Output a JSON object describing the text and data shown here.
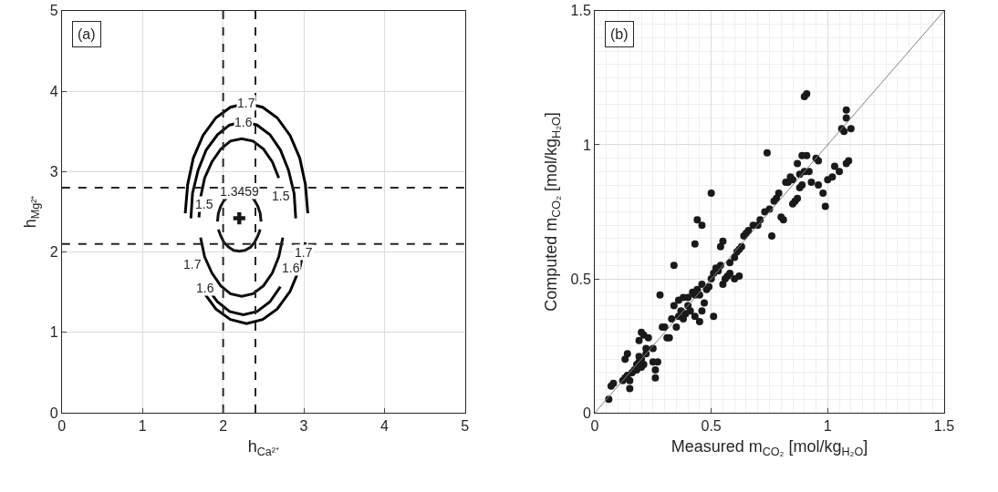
{
  "chart_data": [
    {
      "type": "line",
      "title": "(a)",
      "xlabel": "h$_{Ca²⁺}$",
      "ylabel": "h$_{Mg²⁺}$",
      "xlim": [
        0,
        5
      ],
      "ylim": [
        0,
        5
      ],
      "xticks": [
        0,
        1,
        2,
        3,
        4,
        5
      ],
      "yticks": [
        0,
        1,
        2,
        3,
        4,
        5
      ],
      "grid": true,
      "line_style": "solid",
      "series": [
        {
          "color": "#000000",
          "x": [
            1.53,
            1.56,
            1.63,
            1.75,
            1.91,
            2.09,
            2.29,
            2.49,
            2.67,
            2.83,
            2.95,
            3.02,
            3.05
          ],
          "values": [
            2.48,
            2.84,
            3.17,
            3.45,
            3.67,
            3.8,
            3.85,
            3.8,
            3.67,
            3.45,
            3.17,
            2.84,
            2.48
          ]
        },
        {
          "color": "#030303",
          "x": [
            1.75,
            1.91,
            2.09,
            2.29,
            2.49,
            2.67,
            2.83,
            2.95,
            3.02
          ],
          "values": [
            1.51,
            1.29,
            1.16,
            1.11,
            1.16,
            1.29,
            1.51,
            1.8,
            2.12
          ]
        },
        {
          "color": "#060606",
          "x": [
            1.6,
            1.62,
            1.69,
            1.79,
            1.93,
            2.08,
            2.25,
            2.42,
            2.58,
            2.71,
            2.81,
            2.88,
            2.9
          ],
          "values": [
            2.42,
            2.73,
            3.02,
            3.27,
            3.46,
            3.58,
            3.62,
            3.58,
            3.46,
            3.27,
            3.02,
            2.73,
            2.42
          ]
        },
        {
          "color": "#090909",
          "x": [
            1.79,
            1.93,
            2.08,
            2.25,
            2.42,
            2.58,
            2.71
          ],
          "values": [
            1.57,
            1.38,
            1.26,
            1.22,
            1.26,
            1.38,
            1.57
          ]
        },
        {
          "color": "#0c0c0c",
          "x": [
            1.7,
            1.72,
            1.77,
            1.86,
            1.97,
            2.09,
            2.23,
            2.37,
            2.5,
            2.61,
            2.69
          ],
          "values": [
            2.43,
            2.68,
            2.92,
            3.12,
            3.28,
            3.38,
            3.41,
            3.38,
            3.28,
            3.12,
            2.92
          ]
        },
        {
          "color": "#0f0f0f",
          "x": [
            1.72,
            1.77,
            1.86,
            1.97,
            2.09,
            2.23,
            2.37,
            2.5,
            2.61,
            2.69,
            2.74
          ],
          "values": [
            2.18,
            1.94,
            1.74,
            1.58,
            1.48,
            1.45,
            1.48,
            1.58,
            1.74,
            1.94,
            2.18
          ]
        },
        {
          "color": "#121212",
          "x": [
            1.93,
            1.94,
            1.97,
            2.01,
            2.07,
            2.13,
            2.2,
            2.27,
            2.34,
            2.39,
            2.43,
            2.46,
            2.47
          ],
          "values": [
            2.38,
            2.48,
            2.57,
            2.64,
            2.7,
            2.74,
            2.75,
            2.74,
            2.7,
            2.64,
            2.57,
            2.48,
            2.38
          ]
        },
        {
          "color": "#151515",
          "x": [
            1.94,
            1.97,
            2.01,
            2.07,
            2.13,
            2.2,
            2.27,
            2.34,
            2.39,
            2.43,
            2.46
          ],
          "values": [
            2.28,
            2.2,
            2.12,
            2.06,
            2.02,
            2.01,
            2.02,
            2.06,
            2.12,
            2.2,
            2.28
          ]
        },
        {
          "type": "scatter",
          "marker": "cross",
          "color": "#181818",
          "x": [
            2.2
          ],
          "values": [
            2.42
          ]
        }
      ],
      "ref_lines": [
        {
          "axis": "x",
          "value": 2,
          "color": "#262626",
          "line_style": "dashed"
        },
        {
          "axis": "x",
          "value": 2.4,
          "color": "#262626",
          "line_style": "dashed"
        },
        {
          "axis": "y",
          "value": 2.1,
          "color": "#262626",
          "line_style": "dashed"
        },
        {
          "axis": "y",
          "value": 2.8,
          "color": "#262626",
          "line_style": "dashed"
        }
      ],
      "annotations": [
        {
          "text": "1.7",
          "x": 2.29,
          "y": 3.85
        },
        {
          "text": "1.6",
          "x": 2.25,
          "y": 3.62
        },
        {
          "text": "1.5",
          "x": 1.77,
          "y": 2.6
        },
        {
          "text": "1.5",
          "x": 2.72,
          "y": 2.7
        },
        {
          "text": "1.3459",
          "x": 2.2,
          "y": 2.75
        },
        {
          "text": "1.7",
          "x": 1.62,
          "y": 1.85
        },
        {
          "text": "1.6",
          "x": 1.78,
          "y": 1.55
        },
        {
          "text": "1.6",
          "x": 2.84,
          "y": 1.8
        },
        {
          "text": "1.7",
          "x": 3.0,
          "y": 2.0
        }
      ]
    },
    {
      "type": "scatter",
      "title": "(b)",
      "xlabel": "Measured m$_{CO₂}$ [mol/kg$_{H₂O}$]",
      "ylabel": "Computed m$_{CO₂}$ [mol/kg$_{H₂O}$]",
      "xlim": [
        0,
        1.5
      ],
      "ylim": [
        0,
        1.5
      ],
      "grid": true,
      "xticks": [
        0,
        {
          "value": 0.05,
          "label": null
        },
        {
          "value": 0.1,
          "label": null
        },
        {
          "value": 0.15,
          "label": null
        },
        {
          "value": 0.2,
          "label": null
        },
        {
          "value": 0.25,
          "label": null
        },
        {
          "value": 0.3,
          "label": null
        },
        {
          "value": 0.35,
          "label": null
        },
        {
          "value": 0.4,
          "label": null
        },
        {
          "value": 0.45,
          "label": null
        },
        0.5,
        {
          "value": 0.55,
          "label": null
        },
        {
          "value": 0.6,
          "label": null
        },
        {
          "value": 0.65,
          "label": null
        },
        {
          "value": 0.7,
          "label": null
        },
        {
          "value": 0.75,
          "label": null
        },
        {
          "value": 0.8,
          "label": null
        },
        {
          "value": 0.85,
          "label": null
        },
        {
          "value": 0.9,
          "label": null
        },
        {
          "value": 0.95,
          "label": null
        },
        1,
        {
          "value": 1.05,
          "label": null
        },
        {
          "value": 1.1,
          "label": null
        },
        {
          "value": 1.15,
          "label": null
        },
        {
          "value": 1.2,
          "label": null
        },
        {
          "value": 1.25,
          "label": null
        },
        {
          "value": 1.3,
          "label": null
        },
        {
          "value": 1.35,
          "label": null
        },
        {
          "value": 1.4,
          "label": null
        },
        {
          "value": 1.45,
          "label": null
        },
        1.5
      ],
      "yticks": [
        0,
        {
          "value": 0.05,
          "label": null
        },
        {
          "value": 0.1,
          "label": null
        },
        {
          "value": 0.15,
          "label": null
        },
        {
          "value": 0.2,
          "label": null
        },
        {
          "value": 0.25,
          "label": null
        },
        {
          "value": 0.3,
          "label": null
        },
        {
          "value": 0.35,
          "label": null
        },
        {
          "value": 0.4,
          "label": null
        },
        {
          "value": 0.45,
          "label": null
        },
        0.5,
        {
          "value": 0.55,
          "label": null
        },
        {
          "value": 0.6,
          "label": null
        },
        {
          "value": 0.65,
          "label": null
        },
        {
          "value": 0.7,
          "label": null
        },
        {
          "value": 0.75,
          "label": null
        },
        {
          "value": 0.8,
          "label": null
        },
        {
          "value": 0.85,
          "label": null
        },
        {
          "value": 0.9,
          "label": null
        },
        {
          "value": 0.95,
          "label": null
        },
        1,
        {
          "value": 1.05,
          "label": null
        },
        {
          "value": 1.1,
          "label": null
        },
        {
          "value": 1.15,
          "label": null
        },
        {
          "value": 1.2,
          "label": null
        },
        {
          "value": 1.25,
          "label": null
        },
        {
          "value": 1.3,
          "label": null
        },
        {
          "value": 1.35,
          "label": null
        },
        {
          "value": 1.4,
          "label": null
        },
        {
          "value": 1.45,
          "label": null
        },
        1.5
      ],
      "series": [
        {
          "marker": "circle",
          "color": "#1a1a1a",
          "x": [
            0.06,
            0.07,
            0.08,
            0.12,
            0.13,
            0.14,
            0.15,
            0.15,
            0.13,
            0.14,
            0.16,
            0.17,
            0.18,
            0.19,
            0.2,
            0.18,
            0.19,
            0.21,
            0.2,
            0.22,
            0.22,
            0.19,
            0.21,
            0.2,
            0.23,
            0.25,
            0.25,
            0.26,
            0.27,
            0.26,
            0.28,
            0.29,
            0.3,
            0.31,
            0.32,
            0.33,
            0.34,
            0.34,
            0.35,
            0.36,
            0.37,
            0.38,
            0.39,
            0.4,
            0.4,
            0.38,
            0.36,
            0.42,
            0.41,
            0.43,
            0.43,
            0.44,
            0.45,
            0.46,
            0.44,
            0.46,
            0.43,
            0.45,
            0.46,
            0.47,
            0.48,
            0.49,
            0.5,
            0.51,
            0.52,
            0.53,
            0.54,
            0.5,
            0.54,
            0.55,
            0.51,
            0.55,
            0.56,
            0.57,
            0.58,
            0.58,
            0.6,
            0.61,
            0.62,
            0.63,
            0.64,
            0.65,
            0.6,
            0.62,
            0.66,
            0.68,
            0.7,
            0.71,
            0.73,
            0.74,
            0.75,
            0.76,
            0.77,
            0.78,
            0.79,
            0.8,
            0.81,
            0.82,
            0.83,
            0.84,
            0.85,
            0.85,
            0.86,
            0.87,
            0.88,
            0.88,
            0.89,
            0.9,
            0.91,
            0.9,
            0.91,
            0.92,
            0.93,
            0.95,
            0.96,
            0.96,
            0.98,
            0.99,
            1.0,
            1.02,
            1.03,
            1.05,
            1.06,
            1.07,
            1.08,
            1.08,
            1.08,
            1.09,
            1.1,
            0.87,
            0.89
          ],
          "values": [
            0.05,
            0.1,
            0.11,
            0.12,
            0.13,
            0.14,
            0.12,
            0.09,
            0.2,
            0.22,
            0.15,
            0.16,
            0.18,
            0.19,
            0.2,
            0.16,
            0.21,
            0.18,
            0.17,
            0.22,
            0.24,
            0.27,
            0.29,
            0.3,
            0.28,
            0.24,
            0.19,
            0.16,
            0.19,
            0.13,
            0.44,
            0.32,
            0.32,
            0.28,
            0.28,
            0.35,
            0.55,
            0.4,
            0.32,
            0.36,
            0.38,
            0.35,
            0.37,
            0.4,
            0.43,
            0.43,
            0.42,
            0.45,
            0.38,
            0.36,
            0.44,
            0.46,
            0.44,
            0.48,
            0.72,
            0.7,
            0.63,
            0.34,
            0.38,
            0.41,
            0.46,
            0.47,
            0.5,
            0.52,
            0.54,
            0.53,
            0.55,
            0.82,
            0.62,
            0.64,
            0.36,
            0.48,
            0.5,
            0.51,
            0.52,
            0.56,
            0.58,
            0.6,
            0.61,
            0.62,
            0.66,
            0.67,
            0.5,
            0.51,
            0.68,
            0.7,
            0.7,
            0.72,
            0.75,
            0.97,
            0.76,
            0.66,
            0.79,
            0.8,
            0.82,
            0.73,
            0.72,
            0.86,
            0.86,
            0.88,
            0.87,
            0.78,
            0.79,
            0.8,
            0.89,
            0.84,
            0.85,
            1.18,
            1.19,
            0.9,
            0.96,
            0.9,
            0.86,
            0.95,
            0.94,
            0.85,
            0.82,
            0.77,
            0.87,
            0.88,
            0.92,
            0.9,
            1.06,
            1.05,
            1.1,
            1.13,
            0.93,
            0.94,
            1.06,
            0.93,
            0.96
          ]
        },
        {
          "type": "line",
          "color": "#808080",
          "x": [
            0,
            1.5
          ],
          "values": [
            0,
            1.5
          ]
        }
      ]
    }
  ]
}
